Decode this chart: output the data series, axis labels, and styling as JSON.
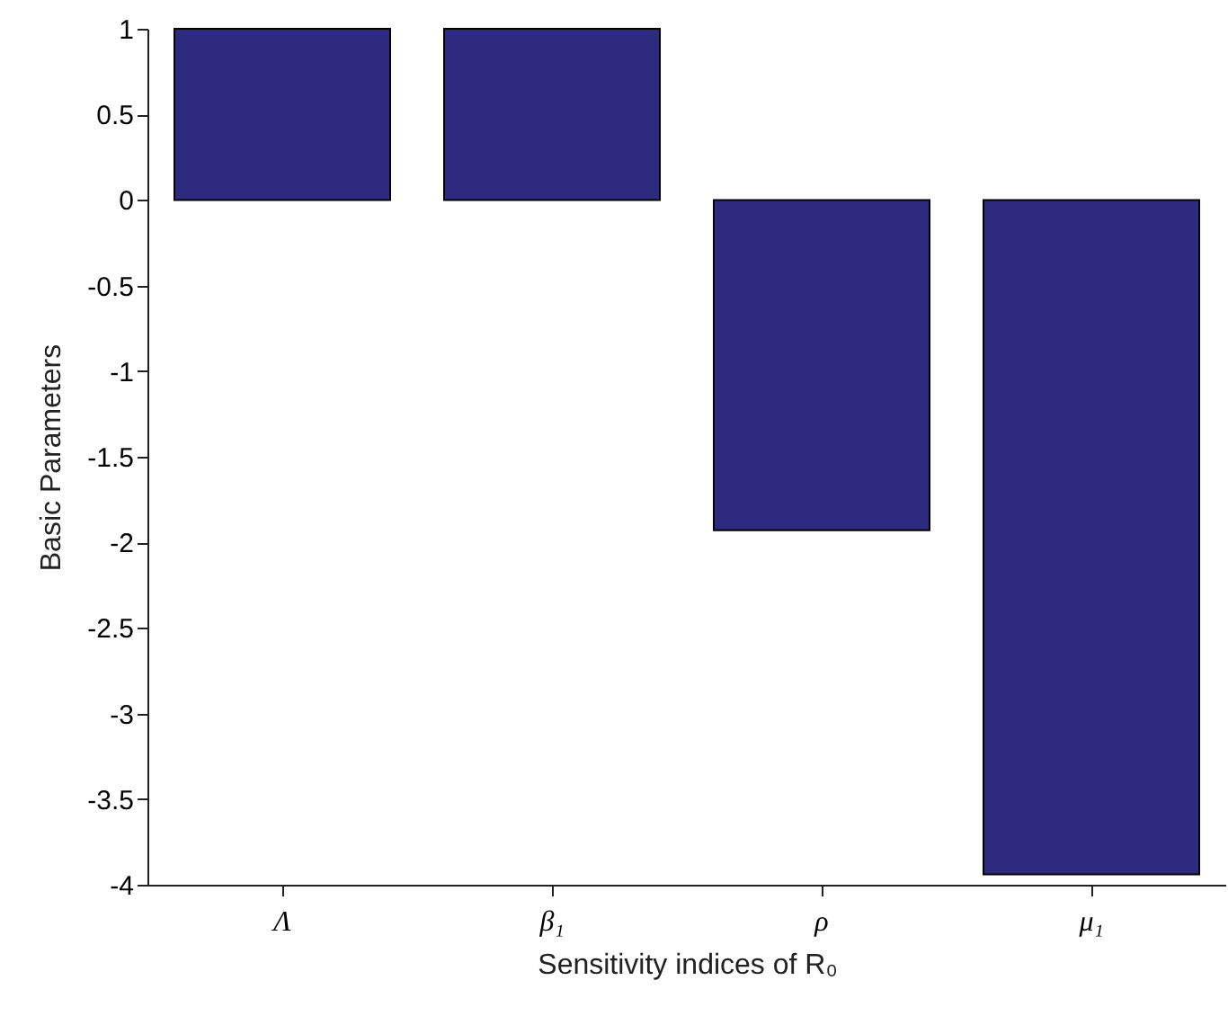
{
  "chart_data": {
    "type": "bar",
    "xlabel": "Sensitivity indices of R₀",
    "ylabel": "Basic Parameters",
    "categories": [
      "Λ",
      "β₁",
      "ρ",
      "μ₁"
    ],
    "values": [
      1,
      1,
      -1.93,
      -3.94
    ],
    "color": "#2e2a7f",
    "ylim": [
      -4,
      1
    ],
    "yticks": [
      -4,
      -3.5,
      -3,
      -2.5,
      -2,
      -1.5,
      -1,
      -0.5,
      0,
      0.5,
      1
    ],
    "grid": false
  }
}
